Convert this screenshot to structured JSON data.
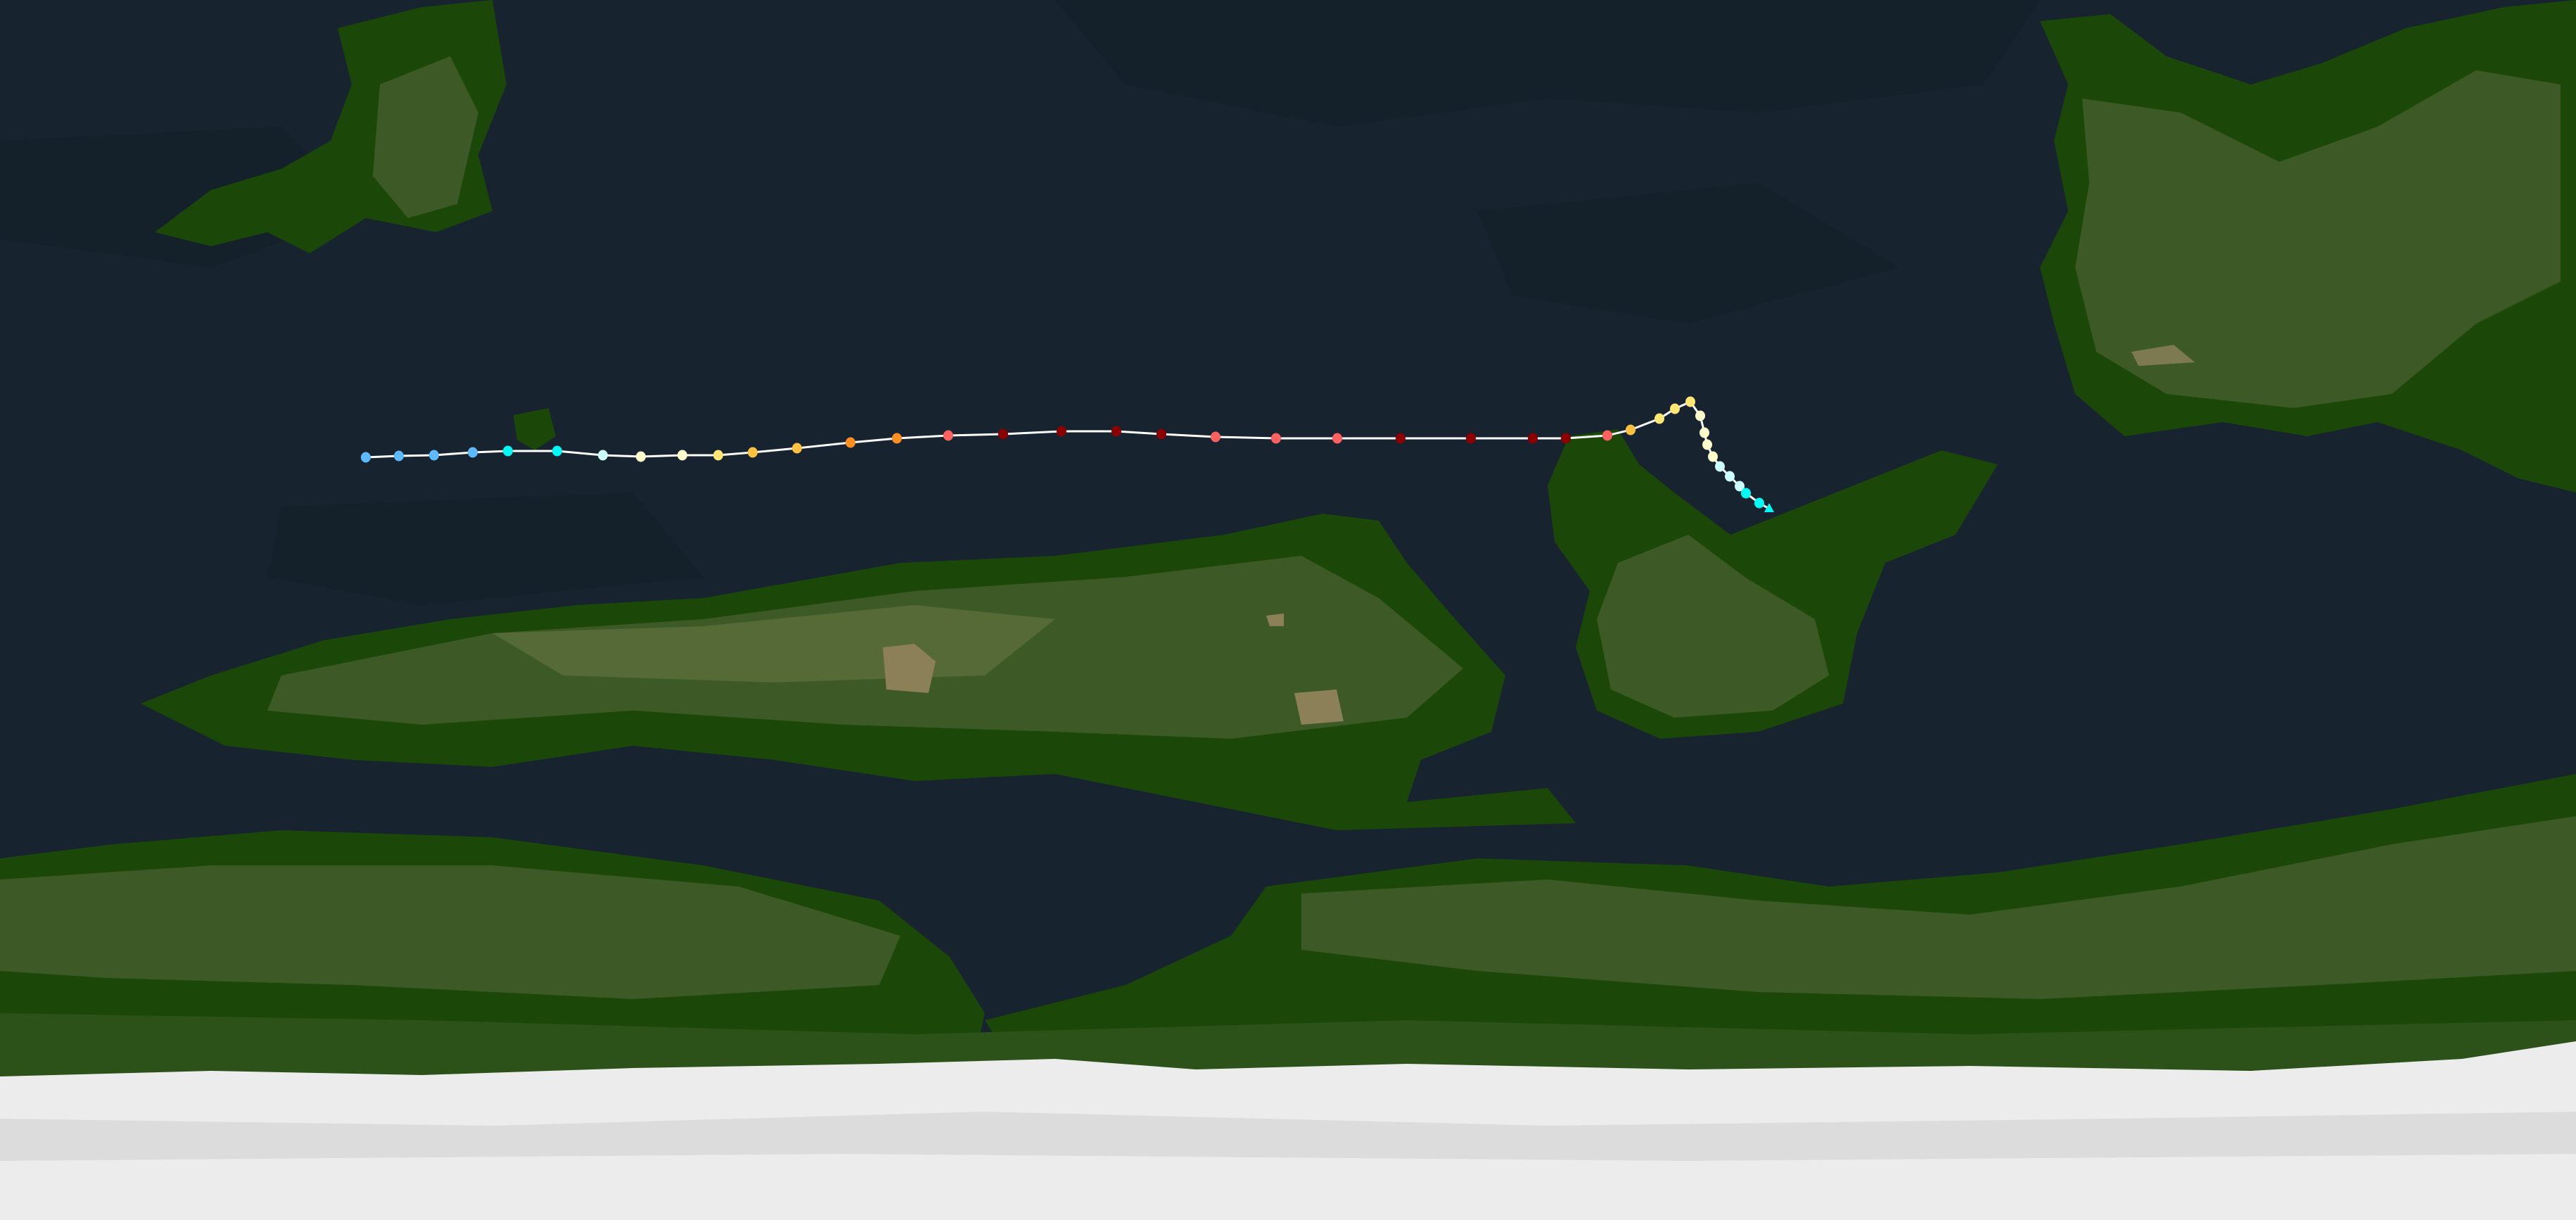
{
  "map": {
    "colors": {
      "ocean": "#17232f",
      "ocean_shade": "#132029",
      "land_dark": "#1b4709",
      "land_mid": "#2d5219",
      "land_light": "#4a6130",
      "land_highland": "#7d7a52",
      "ice": "#ececec",
      "ice_shade": "#dcdcdc"
    }
  },
  "track": {
    "line_color": "#ffffff",
    "category_colors": {
      "depression": "#5ebaff",
      "storm": "#00faf4",
      "cat1": "#ffffcc",
      "cat2": "#ffe775",
      "cat3": "#ffc140",
      "cat4": "#ff8f20",
      "cat5": "#ff6060",
      "extreme": "#8b0000",
      "weakening": "#ccffff"
    },
    "points": [
      "depression",
      "depression",
      "depression",
      "depression",
      "storm",
      "storm",
      "weakening",
      "cat1",
      "cat1",
      "cat2",
      "cat3",
      "cat3",
      "cat4",
      "cat4",
      "cat5",
      "extreme",
      "extreme",
      "extreme",
      "extreme",
      "cat5",
      "cat5",
      "cat5",
      "extreme",
      "extreme",
      "extreme",
      "extreme",
      "cat5",
      "cat3",
      "cat2",
      "cat2",
      "cat2",
      "cat1",
      "cat1",
      "cat1",
      "cat1",
      "weakening",
      "weakening",
      "weakening",
      "storm",
      "storm"
    ],
    "end_marker": "triangle"
  }
}
